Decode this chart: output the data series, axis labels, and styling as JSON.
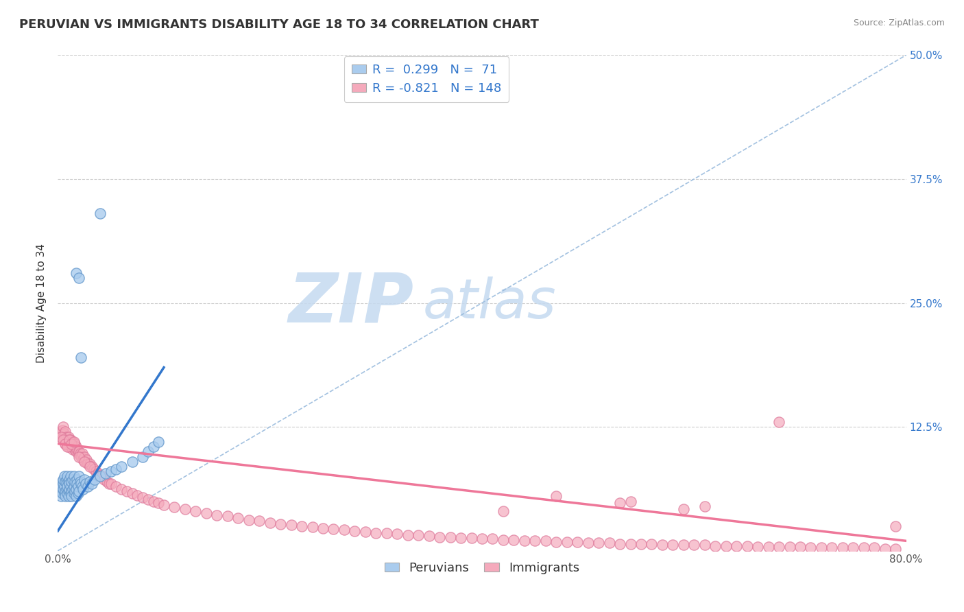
{
  "title": "PERUVIAN VS IMMIGRANTS DISABILITY AGE 18 TO 34 CORRELATION CHART",
  "source_text": "Source: ZipAtlas.com",
  "ylabel": "Disability Age 18 to 34",
  "xlim": [
    0.0,
    0.8
  ],
  "ylim": [
    0.0,
    0.5
  ],
  "xticks": [
    0.0,
    0.2,
    0.4,
    0.6,
    0.8
  ],
  "yticks": [
    0.0,
    0.125,
    0.25,
    0.375,
    0.5
  ],
  "xticklabels_show": [
    "0.0%",
    "80.0%"
  ],
  "yticklabels": [
    "",
    "12.5%",
    "25.0%",
    "37.5%",
    "50.0%"
  ],
  "peruvian_color": "#aaccee",
  "immigrant_color": "#f5aabc",
  "peruvian_edge_color": "#6699cc",
  "immigrant_edge_color": "#dd7799",
  "trend_peruvian_color": "#3377cc",
  "trend_immigrant_color": "#ee7799",
  "diag_color": "#99bbdd",
  "R_peruvian": 0.299,
  "N_peruvian": 71,
  "R_immigrant": -0.821,
  "N_immigrant": 148,
  "watermark_ZIP": "ZIP",
  "watermark_atlas": "atlas",
  "title_fontsize": 13,
  "axis_label_fontsize": 11,
  "tick_fontsize": 11,
  "legend_fontsize": 13,
  "peruvians_x": [
    0.002,
    0.003,
    0.003,
    0.004,
    0.004,
    0.005,
    0.005,
    0.005,
    0.006,
    0.006,
    0.006,
    0.007,
    0.007,
    0.007,
    0.008,
    0.008,
    0.008,
    0.009,
    0.009,
    0.009,
    0.01,
    0.01,
    0.01,
    0.011,
    0.011,
    0.011,
    0.012,
    0.012,
    0.012,
    0.013,
    0.013,
    0.013,
    0.014,
    0.014,
    0.015,
    0.015,
    0.015,
    0.016,
    0.016,
    0.017,
    0.017,
    0.018,
    0.018,
    0.019,
    0.019,
    0.02,
    0.02,
    0.021,
    0.022,
    0.023,
    0.024,
    0.025,
    0.026,
    0.028,
    0.03,
    0.032,
    0.035,
    0.04,
    0.045,
    0.05,
    0.055,
    0.06,
    0.07,
    0.08,
    0.085,
    0.09,
    0.095,
    0.017,
    0.02,
    0.022,
    0.04
  ],
  "peruvians_y": [
    0.06,
    0.055,
    0.065,
    0.058,
    0.07,
    0.062,
    0.068,
    0.072,
    0.058,
    0.065,
    0.075,
    0.06,
    0.07,
    0.055,
    0.062,
    0.072,
    0.068,
    0.058,
    0.065,
    0.075,
    0.06,
    0.07,
    0.055,
    0.062,
    0.072,
    0.068,
    0.058,
    0.065,
    0.075,
    0.06,
    0.07,
    0.055,
    0.062,
    0.072,
    0.058,
    0.065,
    0.075,
    0.06,
    0.07,
    0.055,
    0.062,
    0.072,
    0.068,
    0.058,
    0.065,
    0.075,
    0.06,
    0.07,
    0.068,
    0.065,
    0.062,
    0.072,
    0.068,
    0.065,
    0.07,
    0.068,
    0.072,
    0.075,
    0.078,
    0.08,
    0.082,
    0.085,
    0.09,
    0.095,
    0.1,
    0.105,
    0.11,
    0.28,
    0.275,
    0.195,
    0.34
  ],
  "immigrants_x": [
    0.002,
    0.003,
    0.004,
    0.005,
    0.005,
    0.006,
    0.006,
    0.007,
    0.007,
    0.008,
    0.008,
    0.009,
    0.009,
    0.01,
    0.01,
    0.011,
    0.011,
    0.012,
    0.012,
    0.013,
    0.013,
    0.014,
    0.014,
    0.015,
    0.015,
    0.016,
    0.016,
    0.017,
    0.017,
    0.018,
    0.019,
    0.02,
    0.021,
    0.022,
    0.023,
    0.024,
    0.025,
    0.026,
    0.027,
    0.028,
    0.03,
    0.032,
    0.034,
    0.036,
    0.038,
    0.04,
    0.042,
    0.044,
    0.046,
    0.048,
    0.05,
    0.055,
    0.06,
    0.065,
    0.07,
    0.075,
    0.08,
    0.085,
    0.09,
    0.095,
    0.1,
    0.11,
    0.12,
    0.13,
    0.14,
    0.15,
    0.16,
    0.17,
    0.18,
    0.19,
    0.2,
    0.21,
    0.22,
    0.23,
    0.24,
    0.25,
    0.26,
    0.27,
    0.28,
    0.29,
    0.3,
    0.31,
    0.32,
    0.33,
    0.34,
    0.35,
    0.36,
    0.37,
    0.38,
    0.39,
    0.4,
    0.41,
    0.42,
    0.43,
    0.44,
    0.45,
    0.46,
    0.47,
    0.48,
    0.49,
    0.5,
    0.51,
    0.52,
    0.53,
    0.54,
    0.55,
    0.56,
    0.57,
    0.58,
    0.59,
    0.6,
    0.61,
    0.62,
    0.63,
    0.64,
    0.65,
    0.66,
    0.67,
    0.68,
    0.69,
    0.7,
    0.71,
    0.72,
    0.73,
    0.74,
    0.75,
    0.76,
    0.77,
    0.78,
    0.79,
    0.003,
    0.005,
    0.007,
    0.009,
    0.011,
    0.013,
    0.015,
    0.02,
    0.025,
    0.03,
    0.42,
    0.68,
    0.54,
    0.61,
    0.47,
    0.53,
    0.59,
    0.79
  ],
  "immigrants_y": [
    0.12,
    0.118,
    0.122,
    0.115,
    0.125,
    0.118,
    0.112,
    0.12,
    0.108,
    0.115,
    0.11,
    0.112,
    0.108,
    0.115,
    0.105,
    0.11,
    0.108,
    0.105,
    0.112,
    0.108,
    0.105,
    0.11,
    0.102,
    0.108,
    0.105,
    0.102,
    0.108,
    0.1,
    0.105,
    0.102,
    0.098,
    0.1,
    0.098,
    0.095,
    0.098,
    0.092,
    0.095,
    0.09,
    0.092,
    0.088,
    0.088,
    0.085,
    0.082,
    0.08,
    0.078,
    0.076,
    0.075,
    0.072,
    0.07,
    0.068,
    0.068,
    0.065,
    0.062,
    0.06,
    0.058,
    0.056,
    0.054,
    0.052,
    0.05,
    0.048,
    0.046,
    0.044,
    0.042,
    0.04,
    0.038,
    0.036,
    0.035,
    0.033,
    0.031,
    0.03,
    0.028,
    0.027,
    0.026,
    0.025,
    0.024,
    0.023,
    0.022,
    0.021,
    0.02,
    0.019,
    0.018,
    0.018,
    0.017,
    0.016,
    0.016,
    0.015,
    0.014,
    0.014,
    0.013,
    0.013,
    0.012,
    0.012,
    0.011,
    0.011,
    0.01,
    0.01,
    0.01,
    0.009,
    0.009,
    0.009,
    0.008,
    0.008,
    0.008,
    0.007,
    0.007,
    0.007,
    0.007,
    0.006,
    0.006,
    0.006,
    0.006,
    0.006,
    0.005,
    0.005,
    0.005,
    0.005,
    0.004,
    0.004,
    0.004,
    0.004,
    0.004,
    0.003,
    0.003,
    0.003,
    0.003,
    0.003,
    0.003,
    0.003,
    0.002,
    0.002,
    0.115,
    0.112,
    0.108,
    0.105,
    0.112,
    0.108,
    0.11,
    0.095,
    0.09,
    0.085,
    0.04,
    0.13,
    0.05,
    0.045,
    0.055,
    0.048,
    0.042,
    0.025
  ],
  "peru_trend_x0": 0.0,
  "peru_trend_x1": 0.1,
  "peru_trend_y0": 0.02,
  "peru_trend_y1": 0.185,
  "immig_trend_x0": 0.0,
  "immig_trend_x1": 0.8,
  "immig_trend_y0": 0.108,
  "immig_trend_y1": 0.01
}
